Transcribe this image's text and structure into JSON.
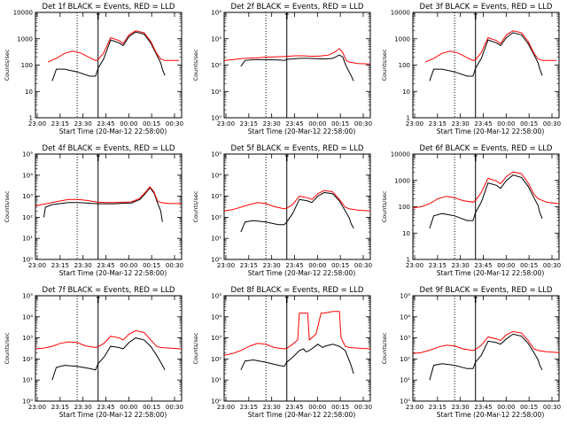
{
  "figure": {
    "xlabel": "Start Time (20-Mar-12 22:58:00)",
    "ylabel": "Counts/sec",
    "x_ticks": [
      "23:00",
      "23:15",
      "23:30",
      "23:45",
      "00:00",
      "00:15",
      "00:30"
    ],
    "x_range_hours": [
      0,
      1.75
    ],
    "dotted_markers_hours": [
      0.5,
      1.75
    ],
    "solid_marker_hours": 0.75,
    "series_colors": {
      "events": "#000000",
      "lld": "#ff0000"
    },
    "legend_black": "BLACK = Events",
    "legend_red": "RED = LLD"
  },
  "chart_data": [
    {
      "type": "line",
      "title": "Det 1f BLACK = Events, RED = LLD",
      "y_scale": "log",
      "ylim": [
        1,
        10000
      ],
      "y_tick_labels": [
        "1",
        "10",
        "100",
        "1000",
        "10000"
      ],
      "series": [
        {
          "name": "Events",
          "x_hours": [
            0.2,
            0.25,
            0.35,
            0.5,
            0.65,
            0.72,
            0.75,
            0.82,
            0.9,
            1.0,
            1.05,
            1.12,
            1.2,
            1.3,
            1.38,
            1.45,
            1.5,
            1.52,
            1.55
          ],
          "values": [
            25,
            70,
            70,
            55,
            38,
            38,
            75,
            180,
            900,
            700,
            550,
            1200,
            1800,
            1500,
            700,
            250,
            120,
            70,
            40
          ]
        },
        {
          "name": "LLD",
          "x_hours": [
            0.15,
            0.25,
            0.35,
            0.45,
            0.55,
            0.65,
            0.72,
            0.75,
            0.82,
            0.9,
            1.0,
            1.05,
            1.12,
            1.2,
            1.3,
            1.38,
            1.45,
            1.5,
            1.55,
            1.65,
            1.72
          ],
          "values": [
            130,
            180,
            280,
            340,
            280,
            190,
            150,
            160,
            300,
            1100,
            850,
            650,
            1400,
            2000,
            1700,
            800,
            280,
            170,
            150,
            150,
            150
          ]
        }
      ]
    },
    {
      "type": "line",
      "title": "Det 2f BLACK = Events, RED = LLD",
      "y_scale": "log",
      "ylim": [
        1,
        10000
      ],
      "y_tick_labels": [
        "10⁰",
        "10¹",
        "10²",
        "10³",
        "10⁴"
      ],
      "series": [
        {
          "name": "Events",
          "x_hours": [
            0.2,
            0.25,
            0.35,
            0.5,
            0.65,
            0.72,
            0.75,
            0.82,
            0.9,
            1.0,
            1.1,
            1.2,
            1.3,
            1.38,
            1.42,
            1.45,
            1.48,
            1.52,
            1.55
          ],
          "values": [
            90,
            150,
            160,
            160,
            155,
            150,
            165,
            170,
            180,
            180,
            175,
            170,
            180,
            240,
            200,
            110,
            70,
            40,
            25
          ]
        },
        {
          "name": "LLD",
          "x_hours": [
            0.0,
            0.1,
            0.2,
            0.3,
            0.4,
            0.5,
            0.6,
            0.7,
            0.75,
            0.85,
            0.95,
            1.05,
            1.15,
            1.25,
            1.33,
            1.38,
            1.42,
            1.46,
            1.5,
            1.6,
            1.75
          ],
          "values": [
            150,
            160,
            175,
            185,
            190,
            200,
            205,
            210,
            215,
            225,
            225,
            215,
            220,
            240,
            320,
            420,
            300,
            150,
            130,
            115,
            110
          ]
        }
      ]
    },
    {
      "type": "line",
      "title": "Det 3f BLACK = Events, RED = LLD",
      "y_scale": "log",
      "ylim": [
        1,
        10000
      ],
      "y_tick_labels": [
        "1",
        "10",
        "100",
        "1000",
        "10000"
      ],
      "series": [
        {
          "name": "Events",
          "x_hours": [
            0.2,
            0.25,
            0.35,
            0.5,
            0.65,
            0.72,
            0.75,
            0.82,
            0.9,
            1.0,
            1.05,
            1.12,
            1.2,
            1.3,
            1.38,
            1.45,
            1.5,
            1.52,
            1.55
          ],
          "values": [
            25,
            70,
            70,
            55,
            38,
            38,
            75,
            180,
            900,
            700,
            550,
            1100,
            1700,
            1400,
            650,
            250,
            120,
            70,
            40
          ]
        },
        {
          "name": "LLD",
          "x_hours": [
            0.15,
            0.25,
            0.35,
            0.45,
            0.55,
            0.65,
            0.72,
            0.75,
            0.82,
            0.9,
            1.0,
            1.05,
            1.12,
            1.2,
            1.3,
            1.38,
            1.45,
            1.5,
            1.55,
            1.65,
            1.72
          ],
          "values": [
            130,
            180,
            280,
            340,
            280,
            190,
            150,
            160,
            300,
            1100,
            850,
            650,
            1400,
            2000,
            1700,
            800,
            280,
            170,
            150,
            150,
            150
          ]
        }
      ]
    },
    {
      "type": "line",
      "title": "Det 4f BLACK = Events, RED = LLD",
      "y_scale": "log",
      "ylim": [
        1,
        100000
      ],
      "y_tick_labels": [
        "10⁰",
        "10¹",
        "10²",
        "10³",
        "10⁴",
        "10⁵"
      ],
      "series": [
        {
          "name": "Events",
          "x_hours": [
            0.1,
            0.12,
            0.2,
            0.3,
            0.4,
            0.5,
            0.6,
            0.7,
            0.75,
            0.85,
            0.95,
            1.05,
            1.15,
            1.25,
            1.32,
            1.37,
            1.42,
            1.46,
            1.5,
            1.52
          ],
          "values": [
            100,
            300,
            400,
            450,
            500,
            500,
            480,
            450,
            440,
            440,
            440,
            460,
            480,
            700,
            1400,
            2500,
            1400,
            500,
            200,
            60
          ]
        },
        {
          "name": "LLD",
          "x_hours": [
            0.0,
            0.1,
            0.2,
            0.3,
            0.4,
            0.5,
            0.6,
            0.7,
            0.75,
            0.85,
            0.95,
            1.05,
            1.15,
            1.25,
            1.32,
            1.37,
            1.42,
            1.46,
            1.5,
            1.6,
            1.75
          ],
          "values": [
            350,
            420,
            500,
            600,
            700,
            700,
            650,
            560,
            520,
            500,
            500,
            520,
            540,
            800,
            1600,
            2800,
            1600,
            600,
            500,
            450,
            450
          ]
        }
      ]
    },
    {
      "type": "line",
      "title": "Det 5f BLACK = Events, RED = LLD",
      "y_scale": "log",
      "ylim": [
        1,
        100000
      ],
      "y_tick_labels": [
        "10⁰",
        "10¹",
        "10²",
        "10³",
        "10⁴",
        "10⁵"
      ],
      "series": [
        {
          "name": "Events",
          "x_hours": [
            0.2,
            0.25,
            0.35,
            0.5,
            0.65,
            0.72,
            0.75,
            0.82,
            0.9,
            1.0,
            1.05,
            1.12,
            1.2,
            1.3,
            1.38,
            1.45,
            1.5,
            1.52,
            1.55
          ],
          "values": [
            20,
            60,
            70,
            60,
            45,
            45,
            60,
            150,
            700,
            600,
            500,
            1000,
            1500,
            1300,
            600,
            200,
            90,
            50,
            30
          ]
        },
        {
          "name": "LLD",
          "x_hours": [
            0.0,
            0.1,
            0.2,
            0.3,
            0.4,
            0.5,
            0.6,
            0.72,
            0.75,
            0.82,
            0.9,
            1.0,
            1.05,
            1.12,
            1.2,
            1.3,
            1.38,
            1.45,
            1.5,
            1.6,
            1.75
          ],
          "values": [
            200,
            230,
            300,
            400,
            500,
            450,
            320,
            250,
            270,
            400,
            1000,
            850,
            700,
            1300,
            1900,
            1600,
            700,
            300,
            250,
            220,
            200
          ]
        }
      ]
    },
    {
      "type": "line",
      "title": "Det 6f BLACK = Events, RED = LLD",
      "y_scale": "log",
      "ylim": [
        1,
        10000
      ],
      "y_tick_labels": [
        "1",
        "10",
        "100",
        "1000",
        "10000"
      ],
      "series": [
        {
          "name": "Events",
          "x_hours": [
            0.2,
            0.25,
            0.35,
            0.5,
            0.65,
            0.72,
            0.75,
            0.82,
            0.9,
            1.0,
            1.05,
            1.12,
            1.2,
            1.3,
            1.38,
            1.45,
            1.5,
            1.52,
            1.55
          ],
          "values": [
            15,
            45,
            55,
            45,
            30,
            30,
            60,
            150,
            800,
            650,
            500,
            1000,
            1600,
            1300,
            600,
            220,
            110,
            60,
            35
          ]
        },
        {
          "name": "LLD",
          "x_hours": [
            0.0,
            0.1,
            0.2,
            0.3,
            0.4,
            0.5,
            0.6,
            0.72,
            0.75,
            0.82,
            0.9,
            1.0,
            1.05,
            1.12,
            1.2,
            1.3,
            1.38,
            1.45,
            1.5,
            1.6,
            1.75
          ],
          "values": [
            90,
            100,
            130,
            200,
            250,
            220,
            170,
            150,
            170,
            350,
            1200,
            950,
            750,
            1400,
            2100,
            1800,
            800,
            300,
            200,
            150,
            130
          ]
        }
      ]
    },
    {
      "type": "line",
      "title": "Det 7f BLACK = Events, RED = LLD",
      "y_scale": "log",
      "ylim": [
        1,
        100000
      ],
      "y_tick_labels": [
        "10⁰",
        "10¹",
        "10²",
        "10³",
        "10⁴",
        "10⁵"
      ],
      "series": [
        {
          "name": "Events",
          "x_hours": [
            0.2,
            0.25,
            0.35,
            0.5,
            0.65,
            0.72,
            0.75,
            0.82,
            0.9,
            1.0,
            1.05,
            1.12,
            1.2,
            1.3,
            1.38,
            1.45,
            1.5,
            1.52,
            1.55
          ],
          "values": [
            10,
            40,
            50,
            45,
            35,
            30,
            60,
            120,
            400,
            350,
            300,
            600,
            1000,
            800,
            400,
            150,
            70,
            50,
            30
          ]
        },
        {
          "name": "LLD",
          "x_hours": [
            0.0,
            0.1,
            0.2,
            0.3,
            0.4,
            0.5,
            0.6,
            0.72,
            0.75,
            0.82,
            0.9,
            1.0,
            1.05,
            1.12,
            1.2,
            1.3,
            1.38,
            1.45,
            1.5,
            1.6,
            1.75
          ],
          "values": [
            300,
            330,
            400,
            550,
            650,
            600,
            420,
            350,
            380,
            550,
            1200,
            1000,
            800,
            1500,
            2200,
            1800,
            800,
            400,
            350,
            330,
            300
          ]
        }
      ]
    },
    {
      "type": "line",
      "title": "Det 8f BLACK = Events, RED = LLD",
      "y_scale": "log",
      "ylim": [
        1,
        100000
      ],
      "y_tick_labels": [
        "10⁰",
        "10¹",
        "10²",
        "10³",
        "10⁴",
        "10⁵"
      ],
      "series": [
        {
          "name": "Events",
          "x_hours": [
            0.2,
            0.25,
            0.35,
            0.5,
            0.65,
            0.72,
            0.75,
            0.82,
            0.9,
            0.95,
            0.98,
            1.0,
            1.05,
            1.12,
            1.18,
            1.2,
            1.3,
            1.38,
            1.45,
            1.5,
            1.52,
            1.55
          ],
          "values": [
            30,
            80,
            90,
            70,
            50,
            45,
            70,
            120,
            250,
            300,
            220,
            230,
            300,
            500,
            350,
            400,
            500,
            400,
            250,
            80,
            50,
            20
          ]
        },
        {
          "name": "LLD",
          "x_hours": [
            0.0,
            0.1,
            0.2,
            0.3,
            0.4,
            0.5,
            0.6,
            0.72,
            0.75,
            0.82,
            0.88,
            0.9,
            0.94,
            1.0,
            1.02,
            1.1,
            1.16,
            1.2,
            1.3,
            1.38,
            1.4,
            1.45,
            1.5,
            1.6,
            1.75
          ],
          "values": [
            150,
            180,
            250,
            400,
            550,
            500,
            350,
            300,
            320,
            500,
            800,
            15000,
            15000,
            15000,
            800,
            1500,
            15000,
            15000,
            18000,
            18000,
            1000,
            400,
            350,
            330,
            300
          ]
        }
      ]
    },
    {
      "type": "line",
      "title": "Det 9f BLACK = Events, RED = LLD",
      "y_scale": "log",
      "ylim": [
        1,
        100000
      ],
      "y_tick_labels": [
        "10⁰",
        "10¹",
        "10²",
        "10³",
        "10⁴",
        "10⁵"
      ],
      "series": [
        {
          "name": "Events",
          "x_hours": [
            0.2,
            0.25,
            0.35,
            0.5,
            0.65,
            0.72,
            0.75,
            0.82,
            0.9,
            1.0,
            1.05,
            1.12,
            1.2,
            1.3,
            1.38,
            1.45,
            1.5,
            1.52,
            1.55
          ],
          "values": [
            10,
            50,
            60,
            50,
            35,
            35,
            70,
            150,
            700,
            600,
            500,
            900,
            1500,
            1200,
            550,
            200,
            90,
            50,
            30
          ]
        },
        {
          "name": "LLD",
          "x_hours": [
            0.0,
            0.1,
            0.2,
            0.3,
            0.4,
            0.5,
            0.6,
            0.72,
            0.75,
            0.82,
            0.9,
            1.0,
            1.05,
            1.12,
            1.2,
            1.3,
            1.38,
            1.45,
            1.5,
            1.6,
            1.75
          ],
          "values": [
            180,
            200,
            260,
            360,
            450,
            420,
            300,
            250,
            280,
            450,
            1100,
            900,
            750,
            1400,
            2000,
            1700,
            750,
            300,
            250,
            220,
            200
          ]
        }
      ]
    }
  ]
}
